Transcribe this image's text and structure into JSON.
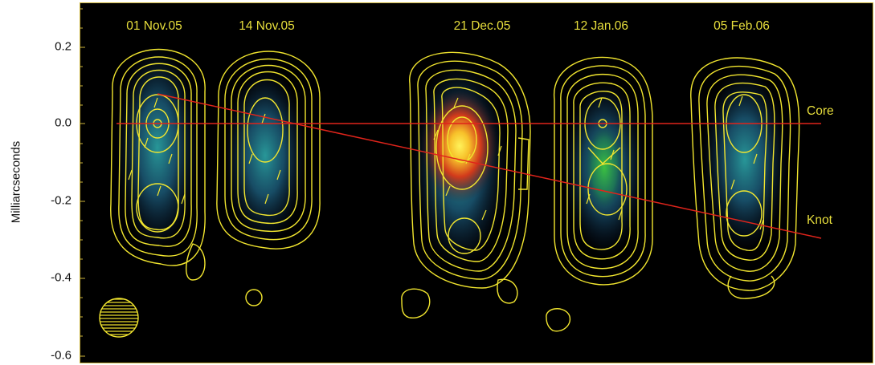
{
  "y_axis": {
    "label": "Milliarcseconds",
    "ticks": [
      "0.2",
      "0.0",
      "-0.2",
      "-0.4",
      "-0.6"
    ],
    "tick_values": [
      0.2,
      0.0,
      -0.2,
      -0.4,
      -0.6
    ]
  },
  "epochs": [
    "01 Nov.05",
    "14 Nov.05",
    "21 Dec.05",
    "12 Jan.06",
    "05 Feb.06"
  ],
  "components": {
    "core": "Core",
    "knot": "Knot"
  },
  "colors": {
    "contour": "#f2e62f",
    "trend_line": "#e0241b",
    "text": "#e8df3c",
    "background": "#000000"
  }
}
